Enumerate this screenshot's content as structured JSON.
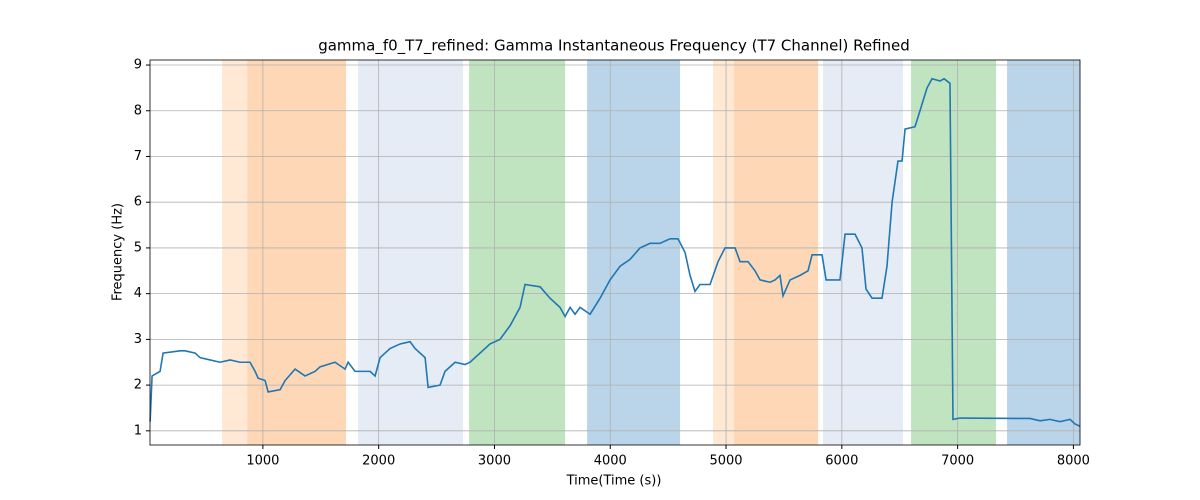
{
  "chart_data": {
    "type": "line",
    "title": "gamma_f0_T7_refined: Gamma Instantaneous Frequency (T7 Channel) Refined",
    "x_label": "Time(Time (s))",
    "y_label": "Frequency (Hz)",
    "xlim": [
      25,
      8057
    ],
    "ylim": [
      0.69,
      9.11
    ],
    "xticks": [
      1000,
      2000,
      3000,
      4000,
      5000,
      6000,
      7000,
      8000
    ],
    "yticks": [
      1,
      2,
      3,
      4,
      5,
      6,
      7,
      8,
      9
    ],
    "grid": true,
    "spans": [
      {
        "start": 648,
        "end": 864,
        "color": "#ffe8d4"
      },
      {
        "start": 864,
        "end": 1718,
        "color": "#fed8b6"
      },
      {
        "start": 1822,
        "end": 2729,
        "color": "#e5ecf6"
      },
      {
        "start": 2781,
        "end": 3610,
        "color": "#c0e3c0"
      },
      {
        "start": 3800,
        "end": 4603,
        "color": "#bad5e9"
      },
      {
        "start": 4888,
        "end": 5069,
        "color": "#ffe8d4"
      },
      {
        "start": 5069,
        "end": 5795,
        "color": "#fed8b6"
      },
      {
        "start": 5838,
        "end": 6528,
        "color": "#e5ecf6"
      },
      {
        "start": 6598,
        "end": 7332,
        "color": "#c0e3c0"
      },
      {
        "start": 7427,
        "end": 8057,
        "color": "#bad5e9"
      }
    ],
    "x": [
      26,
      43,
      112,
      138,
      285,
      328,
      415,
      458,
      544,
      630,
      717,
      803,
      889,
      933,
      959,
      1019,
      1045,
      1149,
      1192,
      1278,
      1364,
      1451,
      1494,
      1623,
      1710,
      1736,
      1796,
      1926,
      1969,
      2012,
      2098,
      2185,
      2271,
      2314,
      2401,
      2427,
      2530,
      2573,
      2660,
      2746,
      2789,
      2962,
      3048,
      3135,
      3221,
      3264,
      3394,
      3480,
      3566,
      3610,
      3653,
      3696,
      3739,
      3826,
      3912,
      3998,
      4085,
      4171,
      4257,
      4344,
      4430,
      4516,
      4585,
      4646,
      4689,
      4732,
      4775,
      4862,
      4931,
      4991,
      5078,
      5121,
      5190,
      5250,
      5294,
      5380,
      5423,
      5466,
      5492,
      5553,
      5639,
      5708,
      5743,
      5829,
      5864,
      5984,
      6028,
      6114,
      6174,
      6209,
      6261,
      6347,
      6390,
      6434,
      6485,
      6520,
      6546,
      6632,
      6675,
      6736,
      6779,
      6848,
      6883,
      6934,
      6960,
      7021,
      7625,
      7712,
      7798,
      7884,
      7971,
      8014,
      8057
    ],
    "series": [
      {
        "name": "gamma_f0_T7_refined",
        "color": "#1f77b4",
        "values": [
          1.2,
          2.2,
          2.3,
          2.7,
          2.75,
          2.75,
          2.7,
          2.6,
          2.55,
          2.5,
          2.55,
          2.5,
          2.5,
          2.3,
          2.15,
          2.1,
          1.85,
          1.9,
          2.1,
          2.35,
          2.2,
          2.3,
          2.4,
          2.5,
          2.35,
          2.5,
          2.3,
          2.3,
          2.2,
          2.6,
          2.8,
          2.9,
          2.95,
          2.8,
          2.6,
          1.95,
          2.0,
          2.3,
          2.5,
          2.45,
          2.5,
          2.9,
          3.0,
          3.3,
          3.7,
          4.2,
          4.15,
          3.9,
          3.7,
          3.5,
          3.7,
          3.55,
          3.7,
          3.55,
          3.9,
          4.3,
          4.6,
          4.75,
          5.0,
          5.1,
          5.1,
          5.2,
          5.2,
          4.9,
          4.4,
          4.05,
          4.2,
          4.2,
          4.7,
          5.0,
          5.0,
          4.7,
          4.7,
          4.5,
          4.3,
          4.25,
          4.3,
          4.4,
          3.95,
          4.3,
          4.4,
          4.5,
          4.85,
          4.85,
          4.3,
          4.3,
          5.3,
          5.3,
          5.0,
          4.1,
          3.9,
          3.9,
          4.6,
          6.0,
          6.9,
          6.9,
          7.6,
          7.65,
          8.0,
          8.5,
          8.7,
          8.65,
          8.7,
          8.6,
          1.25,
          1.28,
          1.27,
          1.22,
          1.25,
          1.2,
          1.25,
          1.15,
          1.1
        ]
      }
    ]
  }
}
